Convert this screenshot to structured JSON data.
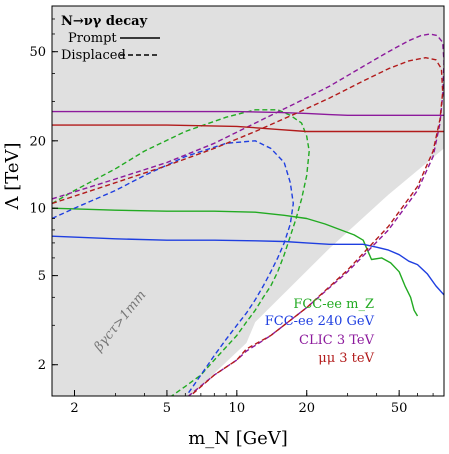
{
  "chart_data": {
    "type": "line",
    "x_scale": "log",
    "y_scale": "log",
    "xlim": [
      1.6,
      78
    ],
    "ylim": [
      1.45,
      80
    ],
    "xlabel": "m_N [GeV]",
    "ylabel": "Λ [TeV]",
    "x_ticks": [
      2,
      5,
      10,
      20,
      50
    ],
    "y_ticks": [
      2,
      5,
      10,
      20,
      50
    ],
    "legend_title": "N→νγ decay",
    "legend_placement": "top-left",
    "line_styles": [
      {
        "name": "Prompt",
        "style": "solid"
      },
      {
        "name": "Displaced",
        "style": "dashed"
      }
    ],
    "shaded_region_color": "#e0e0e0",
    "annotation": "βγcτ>1mm",
    "series": [
      {
        "name": "FCC-ee m_Z",
        "color": "#22aa22",
        "style": "solid",
        "x": [
          1.6,
          3,
          5,
          8,
          12,
          16,
          20,
          24,
          28,
          32,
          35,
          38,
          42,
          46,
          50,
          53,
          56,
          58,
          60
        ],
        "y": [
          10,
          9.8,
          9.7,
          9.7,
          9.6,
          9.3,
          9.0,
          8.5,
          8.0,
          7.6,
          7.2,
          5.9,
          6.0,
          5.7,
          5.2,
          4.5,
          4.0,
          3.5,
          3.3
        ]
      },
      {
        "name": "FCC-ee m_Z",
        "color": "#22aa22",
        "style": "dashed",
        "x": [
          1.6,
          2,
          3,
          4,
          6,
          9,
          12,
          15,
          17,
          19,
          20,
          20.5,
          20,
          19,
          18,
          17,
          16,
          15,
          14,
          13,
          12,
          11,
          10,
          9,
          8,
          7,
          6,
          5
        ],
        "y": [
          10.5,
          12,
          15,
          18,
          22,
          25.5,
          27.5,
          27.5,
          26,
          24,
          21,
          18,
          14,
          11,
          9,
          7.5,
          6.2,
          5.2,
          4.5,
          4.0,
          3.5,
          3.1,
          2.7,
          2.4,
          2.1,
          1.8,
          1.6,
          1.4
        ]
      },
      {
        "name": "FCC-ee 240 GeV",
        "color": "#1f3fe0",
        "style": "solid",
        "x": [
          1.6,
          3,
          5,
          8,
          12,
          16,
          20,
          25,
          30,
          35,
          40,
          45,
          50,
          55,
          60,
          66,
          72,
          78
        ],
        "y": [
          7.5,
          7.3,
          7.2,
          7.2,
          7.15,
          7.1,
          7.0,
          6.9,
          6.9,
          6.9,
          6.7,
          6.5,
          6.2,
          5.8,
          5.6,
          5.1,
          4.5,
          4.1
        ]
      },
      {
        "name": "FCC-ee 240 GeV",
        "color": "#1f3fe0",
        "style": "dashed",
        "x": [
          1.6,
          2,
          3,
          4,
          6,
          9,
          12,
          14,
          16,
          17,
          17.5,
          17,
          16,
          15,
          14,
          13,
          12,
          11,
          10,
          9,
          8,
          7,
          6.2
        ],
        "y": [
          9.0,
          10,
          12,
          14,
          17,
          19.5,
          20,
          18.5,
          16,
          13,
          10.5,
          8.5,
          7,
          6,
          5.2,
          4.5,
          3.9,
          3.4,
          3.0,
          2.6,
          2.2,
          1.8,
          1.5
        ]
      },
      {
        "name": "CLIC 3 TeV",
        "color": "#8c1a9c",
        "style": "solid",
        "x": [
          1.6,
          5,
          10,
          15,
          20,
          25,
          30,
          40,
          50,
          60,
          70,
          78
        ],
        "y": [
          27,
          27,
          27,
          26.8,
          26.5,
          26.2,
          26,
          26,
          26,
          26,
          26,
          26
        ]
      },
      {
        "name": "CLIC 3 TeV",
        "color": "#8c1a9c",
        "style": "dashed",
        "x": [
          1.6,
          3,
          5,
          8,
          12,
          18,
          25,
          35,
          45,
          55,
          62,
          68,
          73,
          77,
          78,
          77,
          75,
          70,
          60,
          45,
          30,
          20,
          14,
          11,
          10,
          8,
          6.2
        ],
        "y": [
          11,
          13.5,
          16,
          19.5,
          24,
          29.5,
          35,
          43,
          50,
          56,
          59,
          60,
          59,
          55,
          45,
          32,
          24,
          17,
          12,
          8,
          5.2,
          3.6,
          2.7,
          2.3,
          2.1,
          1.8,
          1.45
        ]
      },
      {
        "name": "μμ 3 teV",
        "color": "#b21b1b",
        "style": "solid",
        "x": [
          1.6,
          5,
          10,
          15,
          20,
          30,
          40,
          50,
          60,
          70,
          78
        ],
        "y": [
          23.5,
          23.5,
          23.2,
          22.5,
          22,
          22,
          22,
          22,
          22,
          22,
          22
        ]
      },
      {
        "name": "μμ 3 teV",
        "color": "#b21b1b",
        "style": "dashed",
        "x": [
          1.6,
          3,
          5,
          8,
          12,
          18,
          25,
          35,
          45,
          55,
          65,
          72,
          76,
          77,
          75,
          70,
          60,
          45,
          30,
          20,
          14,
          11,
          10,
          8,
          6.3
        ],
        "y": [
          10.5,
          13,
          15.5,
          18.5,
          22,
          26.5,
          31,
          37,
          42,
          45.5,
          47,
          46,
          42,
          33,
          25,
          18,
          12.5,
          8.3,
          5.3,
          3.6,
          2.7,
          2.35,
          2.1,
          1.8,
          1.45
        ]
      }
    ]
  }
}
